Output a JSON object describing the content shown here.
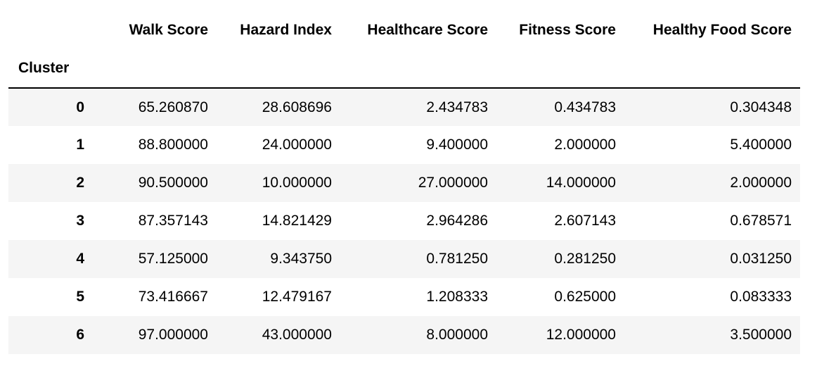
{
  "table": {
    "index_name": "Cluster",
    "columns": [
      "Walk Score",
      "Hazard Index",
      "Healthcare Score",
      "Fitness Score",
      "Healthy Food Score"
    ],
    "rows": [
      {
        "index": "0",
        "values": [
          "65.260870",
          "28.608696",
          "2.434783",
          "0.434783",
          "0.304348"
        ]
      },
      {
        "index": "1",
        "values": [
          "88.800000",
          "24.000000",
          "9.400000",
          "2.000000",
          "5.400000"
        ]
      },
      {
        "index": "2",
        "values": [
          "90.500000",
          "10.000000",
          "27.000000",
          "14.000000",
          "2.000000"
        ]
      },
      {
        "index": "3",
        "values": [
          "87.357143",
          "14.821429",
          "2.964286",
          "2.607143",
          "0.678571"
        ]
      },
      {
        "index": "4",
        "values": [
          "57.125000",
          "9.343750",
          "0.781250",
          "0.281250",
          "0.031250"
        ]
      },
      {
        "index": "5",
        "values": [
          "73.416667",
          "12.479167",
          "1.208333",
          "0.625000",
          "0.083333"
        ]
      },
      {
        "index": "6",
        "values": [
          "97.000000",
          "43.000000",
          "8.000000",
          "12.000000",
          "3.500000"
        ]
      }
    ]
  }
}
